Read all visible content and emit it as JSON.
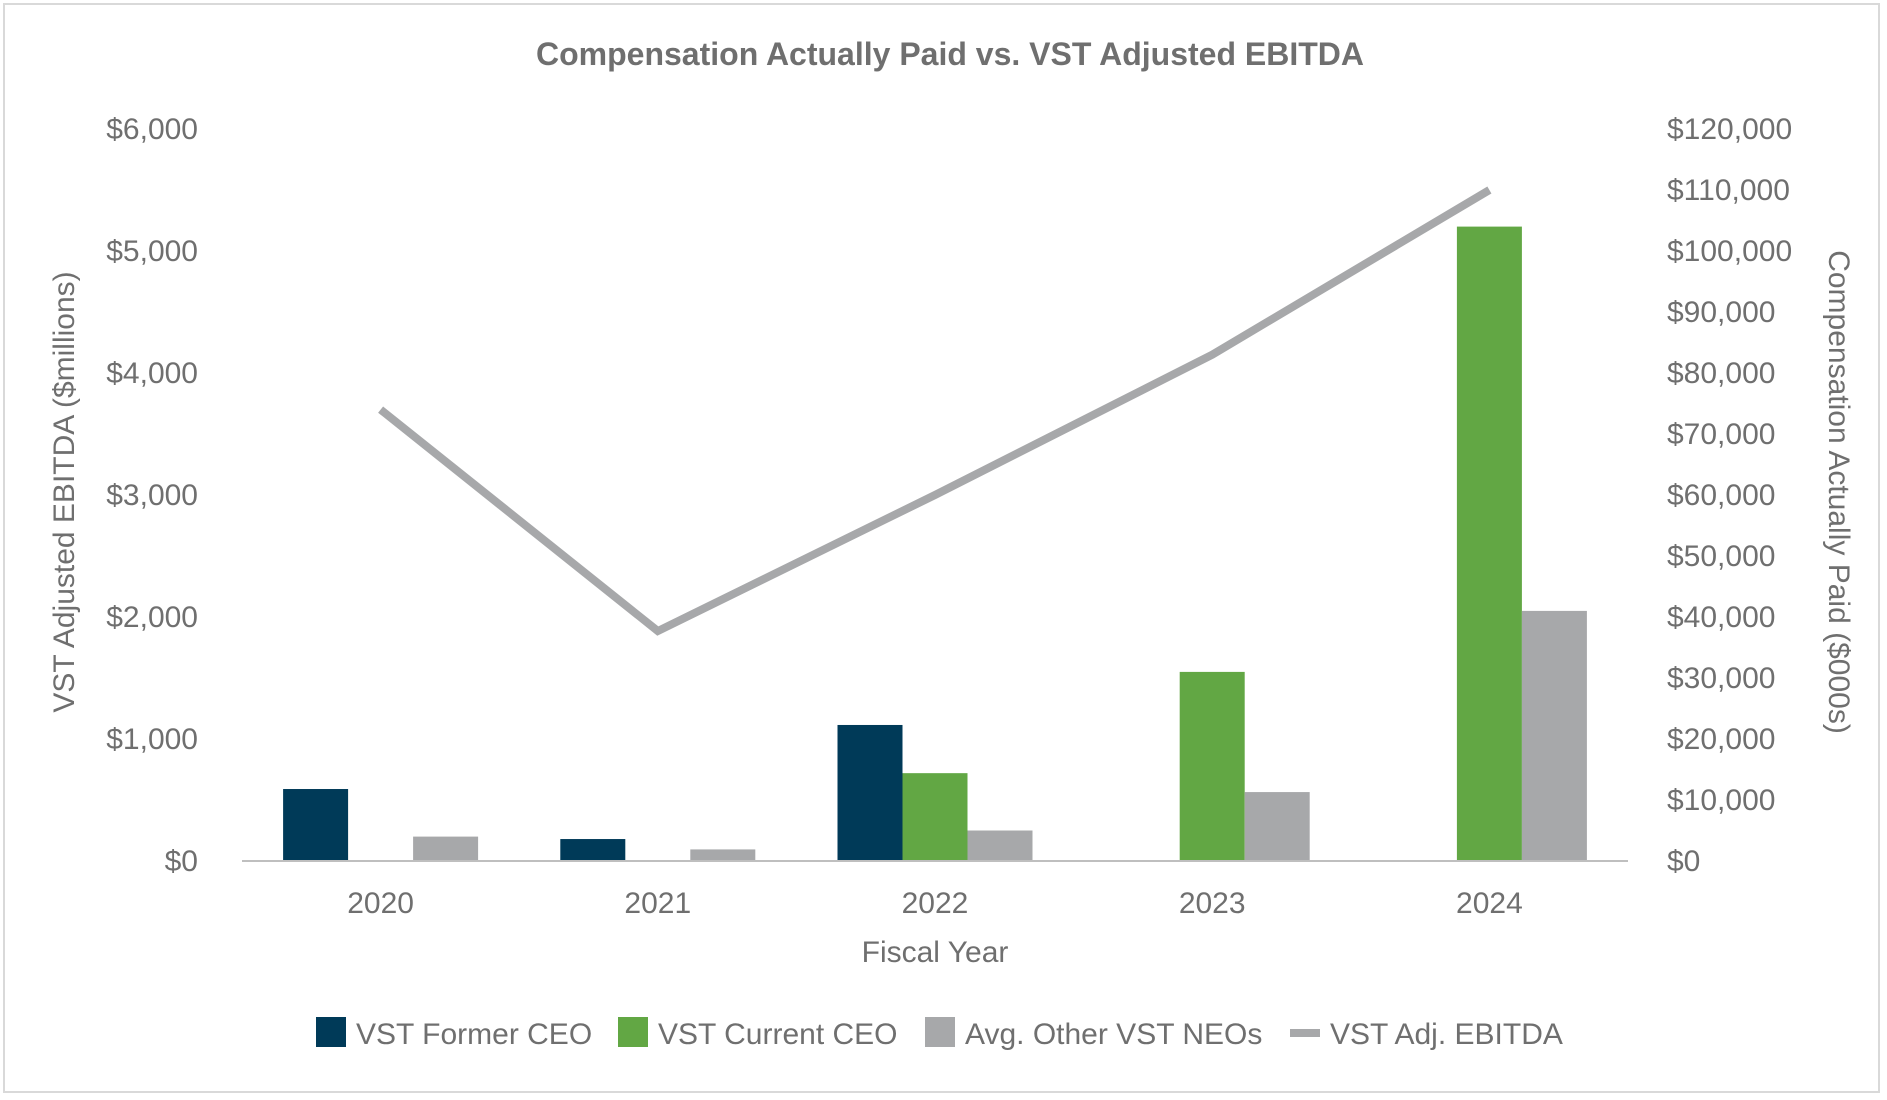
{
  "chart_data": {
    "type": "bar",
    "title": "Compensation Actually Paid vs. VST Adjusted EBITDA",
    "xlabel": "Fiscal Year",
    "ylabel_left": "VST Adjusted EBITDA ($millions)",
    "ylabel_right": "Compensation Actually Paid ($000s)",
    "categories": [
      "2020",
      "2021",
      "2022",
      "2023",
      "2024"
    ],
    "ylim_left": [
      0,
      6000
    ],
    "ylim_right": [
      0,
      120000
    ],
    "yticks_left": [
      "$0",
      "$1,000",
      "$2,000",
      "$3,000",
      "$4,000",
      "$5,000",
      "$6,000"
    ],
    "yticks_right": [
      "$0",
      "$10,000",
      "$20,000",
      "$30,000",
      "$40,000",
      "$50,000",
      "$60,000",
      "$70,000",
      "$80,000",
      "$90,000",
      "$100,000",
      "$110,000",
      "$120,000"
    ],
    "series": [
      {
        "name": "VST Former CEO",
        "kind": "bar",
        "axis": "right",
        "color": "#003a58",
        "values": [
          11800,
          3600,
          22300,
          null,
          null
        ]
      },
      {
        "name": "VST Current CEO",
        "kind": "bar",
        "axis": "right",
        "color": "#62a744",
        "values": [
          null,
          null,
          14400,
          31000,
          104000
        ]
      },
      {
        "name": "Avg. Other VST NEOs",
        "kind": "bar",
        "axis": "right",
        "color": "#a7a8aa",
        "values": [
          4000,
          1900,
          5000,
          11300,
          41000
        ]
      },
      {
        "name": "VST Adj. EBITDA",
        "kind": "line",
        "axis": "left",
        "color": "#a7a8aa",
        "values": [
          3700,
          1885,
          3000,
          4150,
          5500
        ]
      }
    ],
    "legend_position": "bottom"
  }
}
